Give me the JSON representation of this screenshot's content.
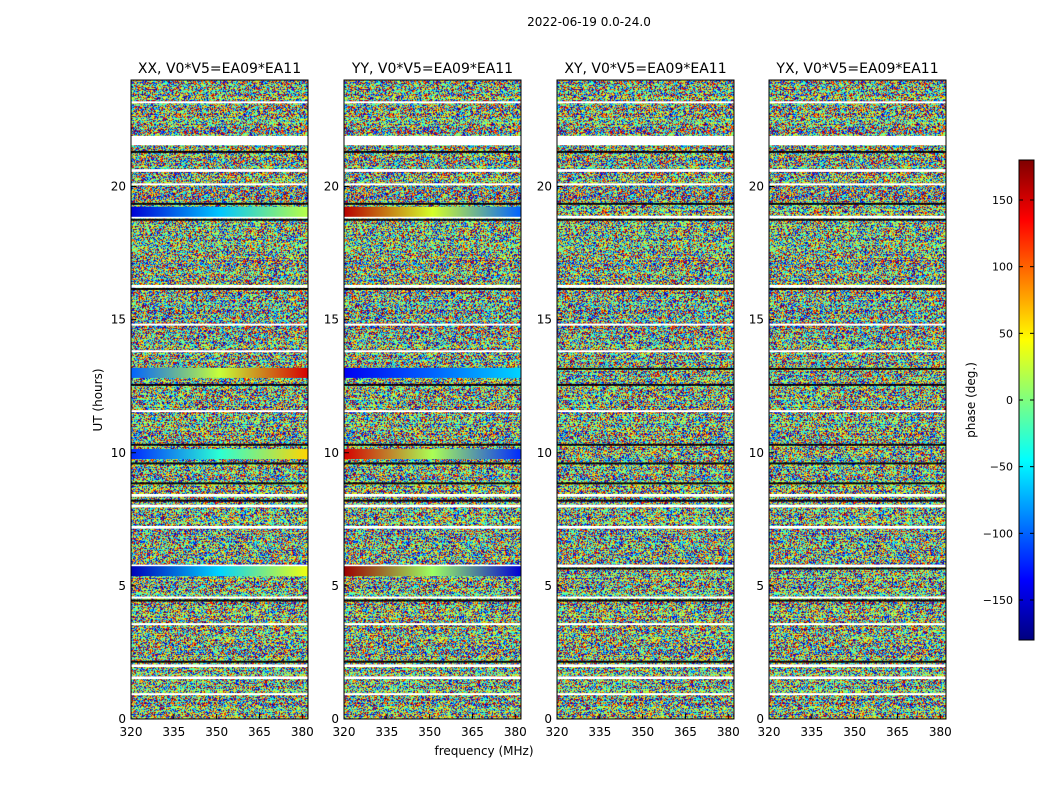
{
  "chart_data": {
    "type": "heatmap",
    "suptitle": "2022-06-19 0.0-24.0",
    "xlabel": "frequency (MHz)",
    "ylabel": "UT (hours)",
    "xlim": [
      320,
      382
    ],
    "ylim": [
      0,
      24
    ],
    "xticks": [
      320,
      335,
      350,
      365,
      380
    ],
    "yticks": [
      0,
      5,
      10,
      15,
      20
    ],
    "colormap": "jet",
    "colorbar": {
      "label": "phase (deg.)",
      "range": [
        -180,
        180
      ],
      "ticks": [
        150,
        100,
        50,
        0,
        -50,
        -100,
        -150
      ],
      "tick_labels": [
        "150",
        "100",
        "50",
        "0",
        "−50",
        "−100",
        "−150"
      ],
      "colors": [
        "#00007f",
        "#0000ff",
        "#007fff",
        "#00ffff",
        "#7fff7f",
        "#ffff00",
        "#ff7f00",
        "#ff0000",
        "#7f0000"
      ]
    },
    "panels": [
      {
        "title": "XX, V0*V5=EA09*EA11",
        "coherent_bands": [
          {
            "ut": 19.05,
            "phase_start": -150,
            "phase_end": 20
          },
          {
            "ut": 13.0,
            "phase_start": -100,
            "phase_end": 150
          },
          {
            "ut": 9.95,
            "phase_start": -120,
            "phase_end": 60
          },
          {
            "ut": 5.55,
            "phase_start": -160,
            "phase_end": 40
          }
        ]
      },
      {
        "title": "YY, V0*V5=EA09*EA11",
        "coherent_bands": [
          {
            "ut": 19.05,
            "phase_start": 160,
            "phase_end": -100
          },
          {
            "ut": 13.0,
            "phase_start": -140,
            "phase_end": -60
          },
          {
            "ut": 9.95,
            "phase_start": 150,
            "phase_end": -120
          },
          {
            "ut": 5.55,
            "phase_start": 170,
            "phase_end": -150
          }
        ]
      },
      {
        "title": "XY, V0*V5=EA09*EA11",
        "coherent_bands": []
      },
      {
        "title": "YX, V0*V5=EA09*EA11",
        "coherent_bands": []
      }
    ],
    "flagged_ut_ranges": [
      [
        23.15,
        23.2
      ],
      [
        21.55,
        21.9
      ],
      [
        20.55,
        20.65
      ],
      [
        20.05,
        20.12
      ],
      [
        18.8,
        18.9
      ],
      [
        16.2,
        16.3
      ],
      [
        14.8,
        14.85
      ],
      [
        13.8,
        13.85
      ],
      [
        11.55,
        11.6
      ],
      [
        8.35,
        8.45
      ],
      [
        7.95,
        8.05
      ],
      [
        7.15,
        7.25
      ],
      [
        5.7,
        5.8
      ],
      [
        4.55,
        4.6
      ],
      [
        3.55,
        3.6
      ],
      [
        1.95,
        2.05
      ],
      [
        1.5,
        1.6
      ],
      [
        0.9,
        0.97
      ]
    ],
    "sharp_edge_ut": [
      21.3,
      19.35,
      18.75,
      16.15,
      13.15,
      12.55,
      10.3,
      9.6,
      8.85,
      8.2,
      5.65,
      4.45,
      2.15
    ]
  }
}
